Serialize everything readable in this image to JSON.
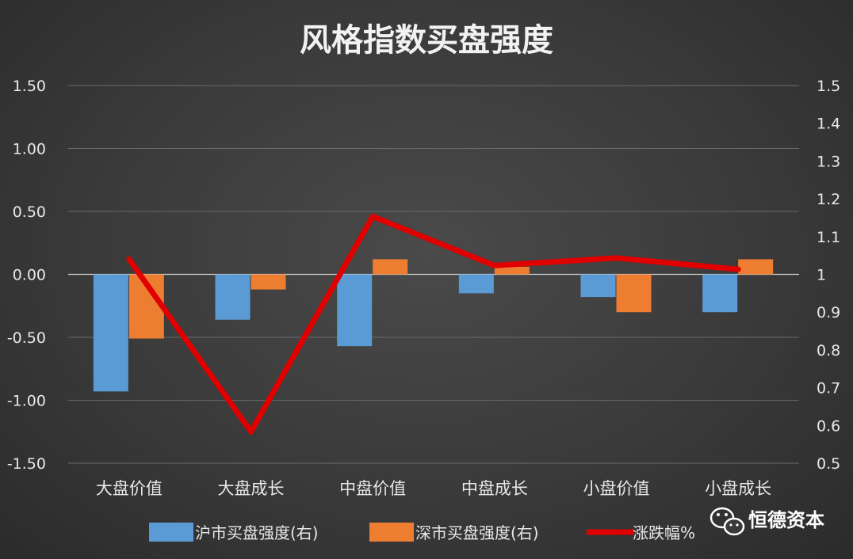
{
  "chart_data": {
    "type": "bar",
    "title": "风格指数买盘强度",
    "categories": [
      "大盘价值",
      "大盘成长",
      "中盘价值",
      "中盘成长",
      "小盘价值",
      "小盘成长"
    ],
    "y_left": {
      "min": -1.5,
      "max": 1.5,
      "ticks": [
        "1.50",
        "1.00",
        "0.50",
        "0.00",
        "-0.50",
        "-1.00",
        "-1.50"
      ]
    },
    "y_right": {
      "min": 0.5,
      "max": 1.5,
      "ticks": [
        "1.5",
        "1.4",
        "1.3",
        "1.2",
        "1.1",
        "1",
        "0.9",
        "0.8",
        "0.7",
        "0.6",
        "0.5"
      ]
    },
    "series": [
      {
        "name": "沪市买盘强度(右)",
        "type": "bar",
        "axis": "right",
        "color": "#5b9bd5",
        "values": [
          0.69,
          0.88,
          0.81,
          0.95,
          0.94,
          0.9
        ]
      },
      {
        "name": "深市买盘强度(右)",
        "type": "bar",
        "axis": "right",
        "color": "#ed7d31",
        "values": [
          0.83,
          0.96,
          1.04,
          1.02,
          0.9,
          1.04
        ]
      },
      {
        "name": "涨跌幅%",
        "type": "line",
        "axis": "left",
        "color": "#e00000",
        "values": [
          0.12,
          -1.25,
          0.46,
          0.07,
          0.13,
          0.04
        ]
      }
    ],
    "grid": true,
    "legend_position": "bottom"
  },
  "watermark": {
    "text": "恒德资本",
    "icon": "wechat-icon"
  }
}
